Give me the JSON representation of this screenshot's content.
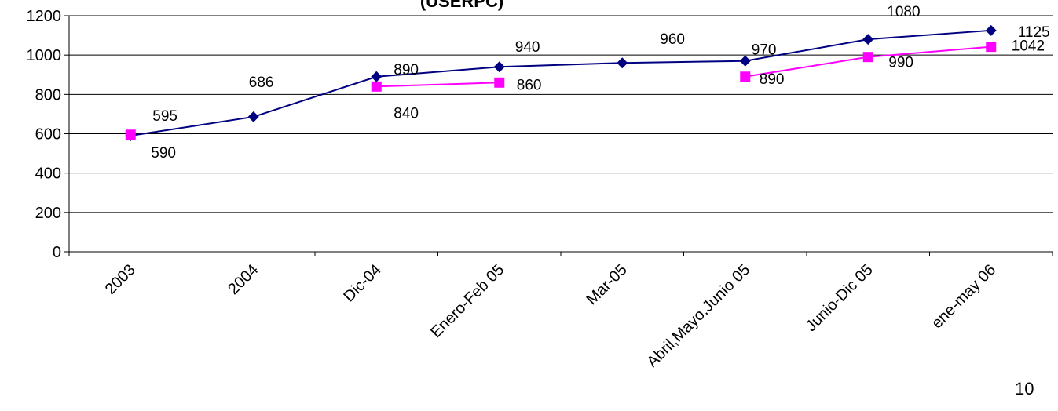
{
  "chart_data": {
    "type": "line",
    "title": "(USERPC)",
    "categories": [
      "2003",
      "2004",
      "Dic-04",
      "Enero-Feb 05",
      "Mar-05",
      "Abril,Mayo,Junio 05",
      "Junio-Dic 05",
      "ene-may 06"
    ],
    "ylim": [
      0,
      1200
    ],
    "yticks": [
      0,
      200,
      400,
      600,
      800,
      1000,
      1200
    ],
    "grid": true,
    "series": [
      {
        "color": "#000080",
        "marker": "diamond",
        "values": [
          590,
          686,
          890,
          940,
          960,
          970,
          1080,
          1125
        ],
        "labels": [
          "590",
          "686",
          "890",
          "940",
          "960",
          "970",
          "1080",
          "1125"
        ]
      },
      {
        "color": "#ff00ff",
        "marker": "square",
        "values": [
          595,
          null,
          840,
          860,
          null,
          890,
          990,
          1042
        ],
        "labels": [
          "595",
          null,
          "840",
          "860",
          null,
          "890",
          "990",
          "1042"
        ]
      }
    ]
  },
  "page_number": "10"
}
